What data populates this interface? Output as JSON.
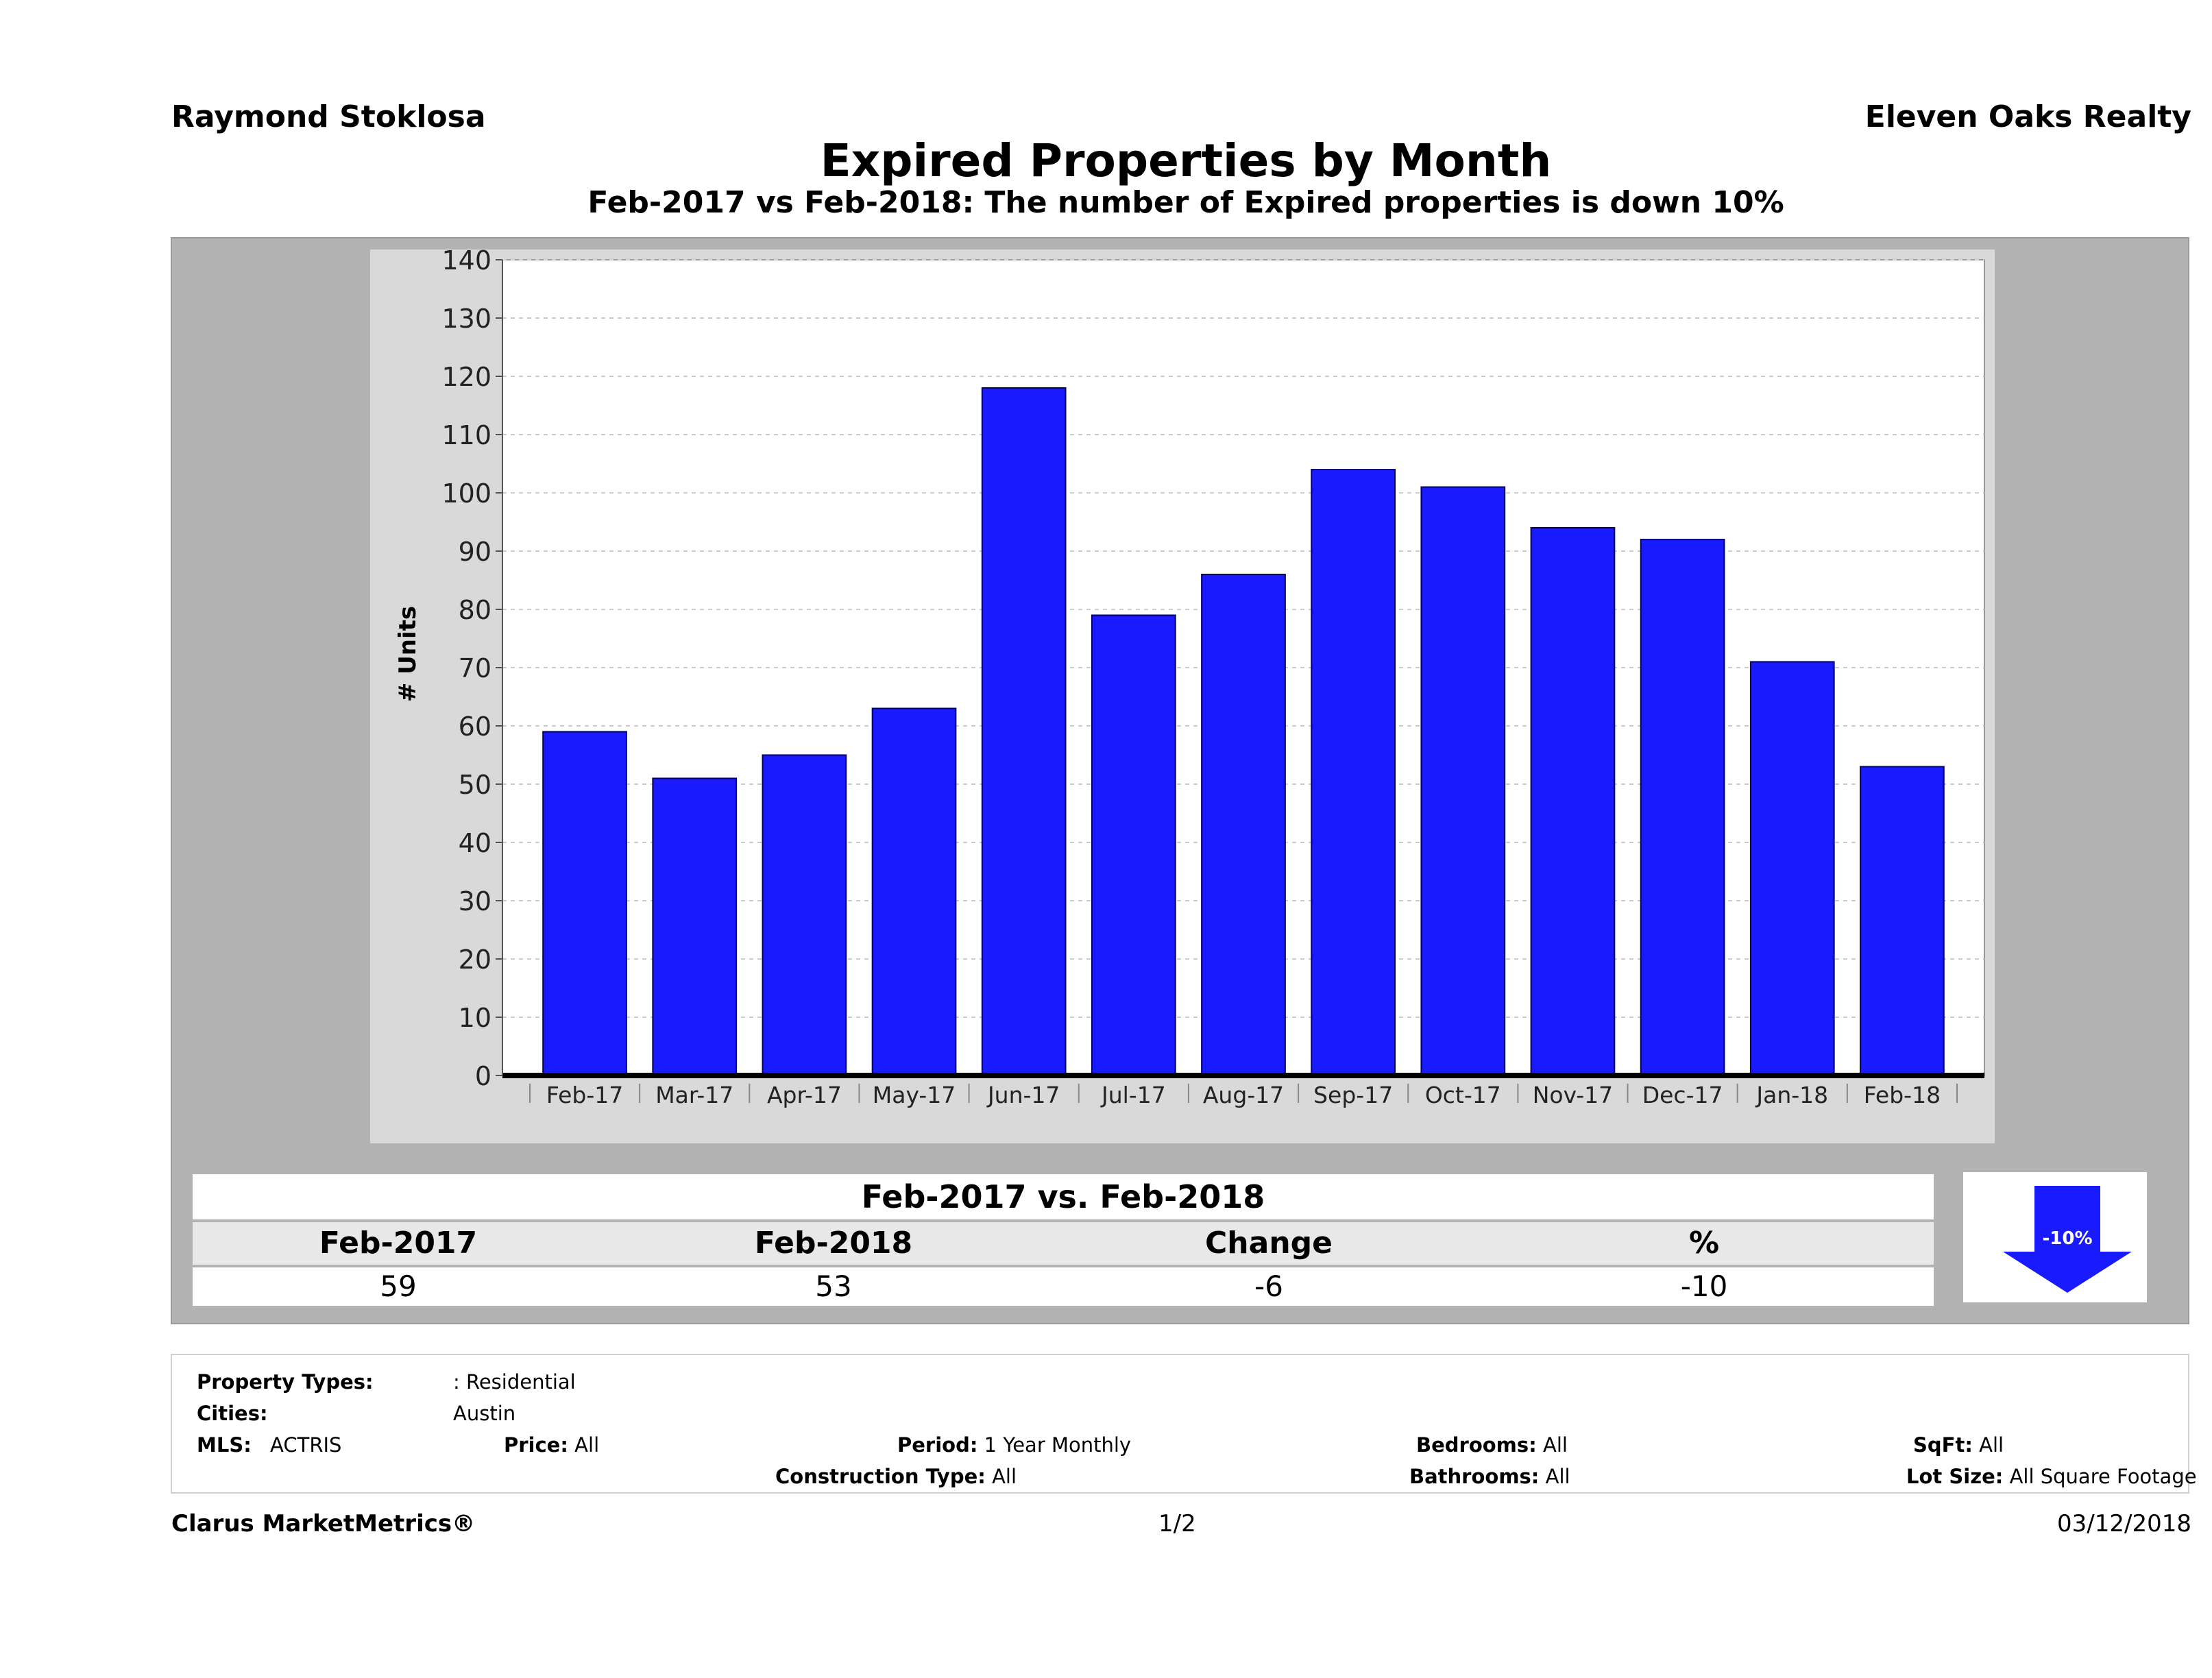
{
  "header": {
    "agent": "Raymond Stoklosa",
    "company": "Eleven Oaks Realty",
    "title": "Expired Properties by Month",
    "subtitle": "Feb-2017 vs Feb-2018: The number of Expired  properties is down 10%"
  },
  "chart_data": {
    "type": "bar",
    "categories": [
      "Feb-17",
      "Mar-17",
      "Apr-17",
      "May-17",
      "Jun-17",
      "Jul-17",
      "Aug-17",
      "Sep-17",
      "Oct-17",
      "Nov-17",
      "Dec-17",
      "Jan-18",
      "Feb-18"
    ],
    "values": [
      59,
      51,
      55,
      63,
      118,
      79,
      86,
      104,
      101,
      94,
      92,
      71,
      53
    ],
    "ylabel": "# Units",
    "ylim": [
      0,
      140
    ],
    "yticks": [
      0,
      10,
      20,
      30,
      40,
      50,
      60,
      70,
      80,
      90,
      100,
      110,
      120,
      130,
      140
    ],
    "grid": true,
    "bar_color": "#1a1aff"
  },
  "comparison": {
    "title": "Feb-2017 vs. Feb-2018",
    "headers": [
      "Feb-2017",
      "Feb-2018",
      "Change",
      "%"
    ],
    "values": [
      "59",
      "53",
      "-6",
      "-10"
    ],
    "arrow_label": "-10%",
    "arrow_direction": "down",
    "arrow_color": "#1a1aff"
  },
  "filters": {
    "property_types_label": "Property Types:",
    "property_types_value": ": Residential",
    "cities_label": "Cities:",
    "cities_value": "Austin",
    "mls_label": "MLS:",
    "mls_value": "ACTRIS",
    "price_label": "Price:",
    "price_value": "All",
    "period_label": "Period:",
    "period_value": "1 Year Monthly",
    "construction_label": "Construction Type:",
    "construction_value": "All",
    "bedrooms_label": "Bedrooms:",
    "bedrooms_value": "All",
    "bathrooms_label": "Bathrooms:",
    "bathrooms_value": "All",
    "sqft_label": "SqFt:",
    "sqft_value": "All",
    "lotsize_label": "Lot Size:",
    "lotsize_value": "All Square Footage"
  },
  "footer": {
    "brand": "Clarus MarketMetrics®",
    "page": "1/2",
    "date": "03/12/2018"
  }
}
